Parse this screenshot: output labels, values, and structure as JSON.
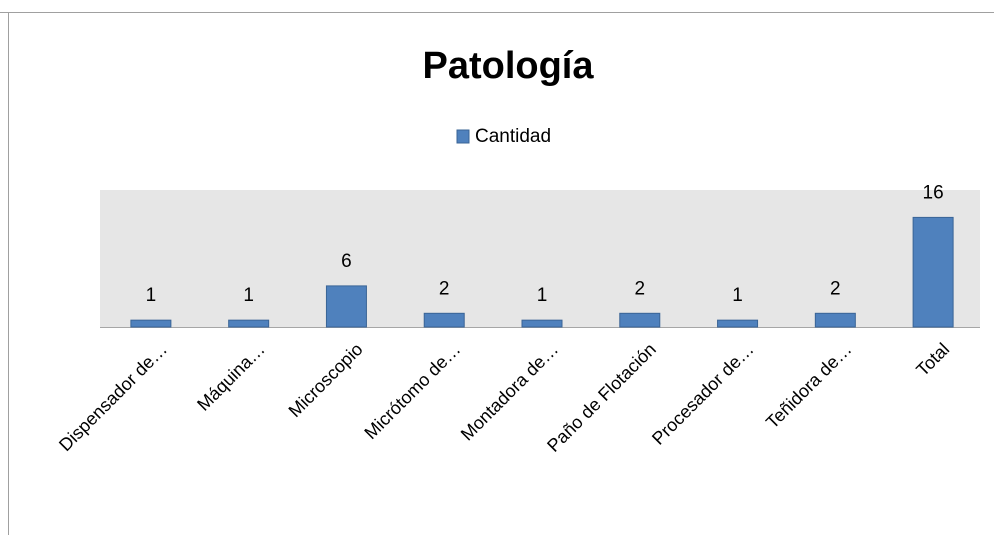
{
  "chart_data": {
    "type": "bar",
    "title": "Patología",
    "legend": "Cantidad",
    "categories": [
      "Dispensador de…",
      "Máquina…",
      "Microscopio",
      "Micrótomo de…",
      "Montadora de…",
      "Paño de Flotación",
      "Procesador de…",
      "Teñidora de…",
      "Total"
    ],
    "values": [
      1,
      1,
      6,
      2,
      1,
      2,
      1,
      2,
      16
    ],
    "color": "#4f81bd",
    "ylim": [
      0,
      20
    ]
  }
}
